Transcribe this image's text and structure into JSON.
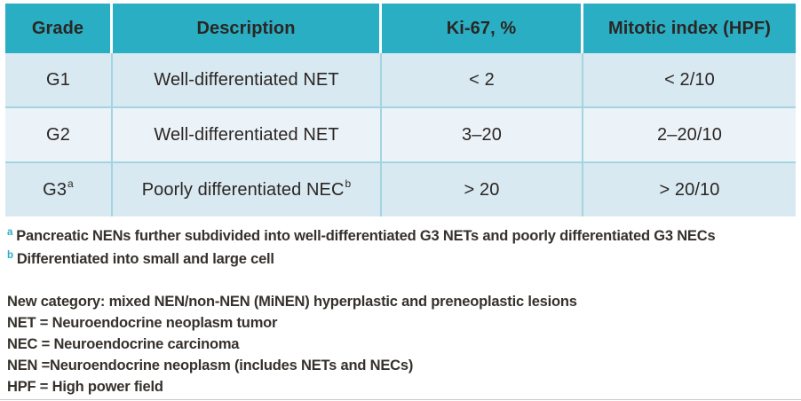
{
  "table": {
    "columns": [
      {
        "label": "Grade"
      },
      {
        "label": "Description"
      },
      {
        "label": "Ki-67, %"
      },
      {
        "label": "Mitotic index (HPF)"
      }
    ],
    "rows": [
      {
        "grade": "G1",
        "grade_sup": "",
        "description": "Well-differentiated NET",
        "description_sup": "",
        "ki67": "< 2",
        "mitotic": "< 2/10"
      },
      {
        "grade": "G2",
        "grade_sup": "",
        "description": "Well-differentiated NET",
        "description_sup": "",
        "ki67": "3–20",
        "mitotic": "2–20/10"
      },
      {
        "grade": "G3",
        "grade_sup": "a",
        "description": "Poorly differentiated NEC",
        "description_sup": "b",
        "ki67": "> 20",
        "mitotic": "> 20/10"
      }
    ]
  },
  "footnotes": [
    {
      "marker": "a",
      "text": "Pancreatic NENs further subdivided into well-differentiated G3 NETs and poorly differentiated G3 NECs"
    },
    {
      "marker": "b",
      "text": "Differentiated into small and large cell"
    }
  ],
  "abbreviations": [
    "New category: mixed NEN/non-NEN (MiNEN) hyperplastic and preneoplastic lesions",
    "NET = Neuroendocrine neoplasm tumor",
    "NEC = Neuroendocrine carcinoma",
    "NEN =Neuroendocrine neoplasm (includes NETs and NECs)",
    "HPF = High power field"
  ],
  "colors": {
    "header_bg": "#2aaec3",
    "header_text": "#ffffff",
    "row_odd_bg": "#d8e9f2",
    "row_even_bg": "#ebf3f9",
    "divider": "#a3d4e0",
    "body_text": "#2b2623",
    "note_text": "#35312c",
    "footnote_marker": "#2aaec3"
  }
}
